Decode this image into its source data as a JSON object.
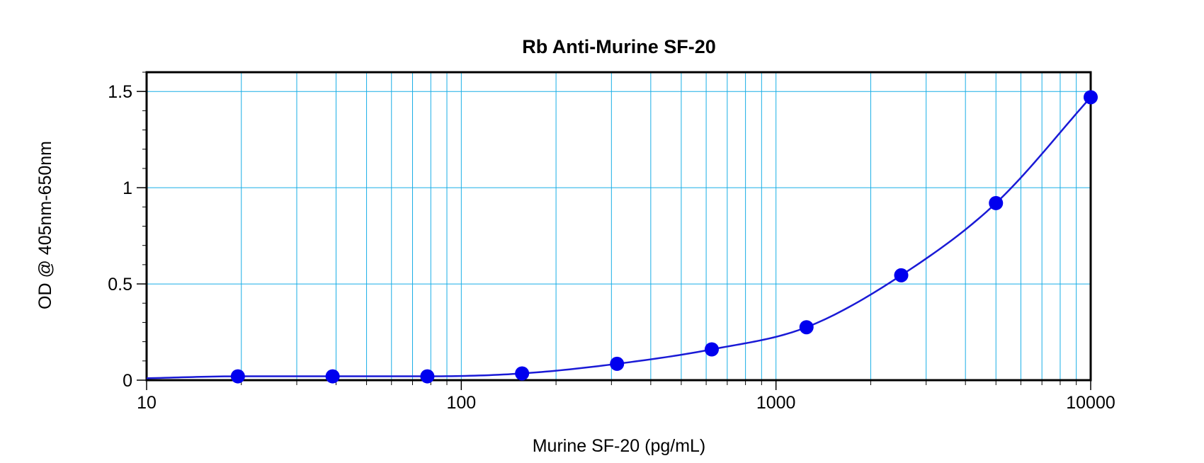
{
  "chart_data": {
    "type": "scatter",
    "title": "Rb Anti-Murine SF-20",
    "xlabel": "Murine SF-20 (pg/mL)",
    "ylabel": "OD @ 405nm-650nm",
    "x_scale": "log",
    "xlim": [
      10,
      10000
    ],
    "ylim": [
      0,
      1.6
    ],
    "x_ticks": [
      10,
      100,
      1000,
      10000
    ],
    "x_tick_labels": [
      "10",
      "100",
      "1000",
      "10000"
    ],
    "y_ticks": [
      0,
      0.5,
      1,
      1.5
    ],
    "y_tick_labels": [
      "0",
      "0.5",
      "1",
      "1.5"
    ],
    "grid": true,
    "legend": "none",
    "series": [
      {
        "x": [
          19.5,
          39,
          78,
          156,
          312.5,
          625,
          1250,
          2500,
          5000,
          10000
        ],
        "y": [
          0.02,
          0.02,
          0.02,
          0.035,
          0.085,
          0.16,
          0.275,
          0.545,
          0.92,
          1.47
        ],
        "fit_line": true
      }
    ],
    "colors": {
      "points": "#0000ee",
      "fit_line": "#1a1ad6",
      "grid": "#19aee6",
      "axis": "#000000"
    }
  }
}
